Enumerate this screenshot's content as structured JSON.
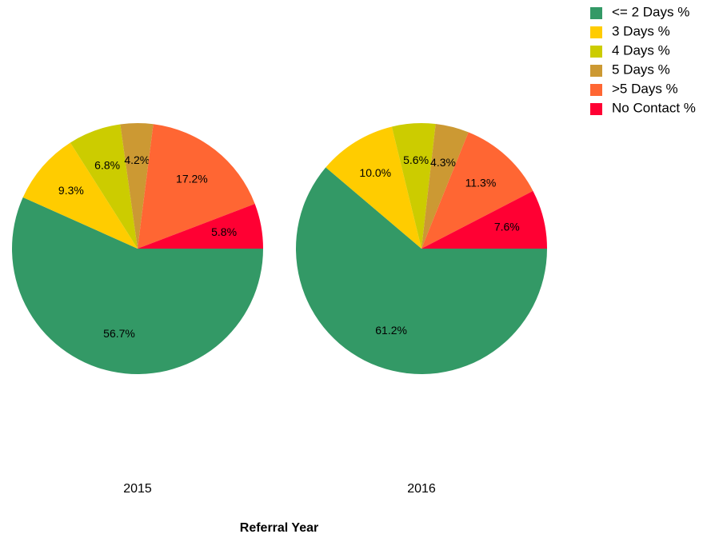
{
  "chart_data": {
    "type": "pie",
    "categories": [
      "<= 2 Days %",
      "3 Days %",
      "4 Days %",
      "5 Days %",
      ">5 Days %",
      "No Contact %"
    ],
    "colors": [
      "#339966",
      "#ffcc00",
      "#cccc00",
      "#cc9933",
      "#ff6633",
      "#ff0033"
    ],
    "series": [
      {
        "name": "2015",
        "values": [
          56.7,
          9.3,
          6.8,
          4.2,
          17.2,
          5.8
        ],
        "value_labels": [
          "56.7%",
          "9.3%",
          "6.8%",
          "4.2%",
          "17.2%",
          "5.8%"
        ]
      },
      {
        "name": "2016",
        "values": [
          61.2,
          10.0,
          5.6,
          4.3,
          11.3,
          7.6
        ],
        "value_labels": [
          "61.2%",
          "10.0%",
          "5.6%",
          "4.3%",
          "11.3%",
          "7.6%"
        ]
      }
    ],
    "xlabel": "Referral Year"
  }
}
